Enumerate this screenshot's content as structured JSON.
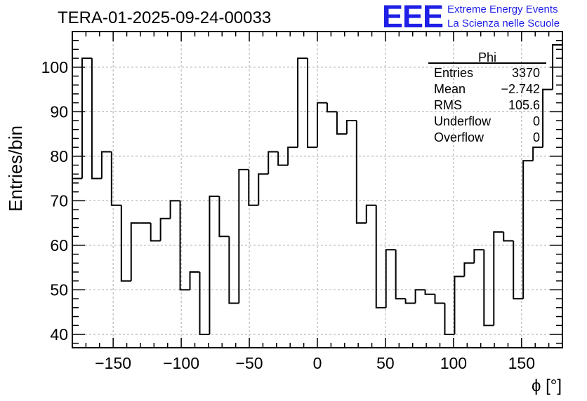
{
  "title": "TERA-01-2025-09-24-00033",
  "logo": {
    "mark": "EEE",
    "line1": "Extreme Energy Events",
    "line2": "La Scienza nelle Scuole",
    "color": "#1f1fe6"
  },
  "stats": {
    "name": "Phi",
    "rows": [
      {
        "label": "Entries",
        "value": "3370"
      },
      {
        "label": "Mean",
        "value": "−2.742"
      },
      {
        "label": "RMS",
        "value": "105.6"
      },
      {
        "label": "Underflow",
        "value": "0"
      },
      {
        "label": "Overflow",
        "value": "0"
      }
    ]
  },
  "chart_data": {
    "type": "histogram",
    "xlabel": "ϕ [°]",
    "ylabel": "Entries/bin",
    "xlim": [
      -180,
      180
    ],
    "ylim": [
      37,
      108
    ],
    "xticks": [
      -150,
      -100,
      -50,
      0,
      50,
      100,
      150
    ],
    "xtick_labels": [
      "−150",
      "−100",
      "−50",
      "0",
      "50",
      "100",
      "150"
    ],
    "yticks": [
      40,
      50,
      60,
      70,
      80,
      90,
      100
    ],
    "grid": true,
    "bin_width": 7.2,
    "values": [
      75,
      102,
      75,
      81,
      69,
      52,
      65,
      65,
      61,
      66,
      70,
      50,
      54,
      40,
      71,
      62,
      47,
      77,
      69,
      76,
      81,
      78,
      82,
      102,
      82,
      92,
      90,
      85,
      88,
      65,
      69,
      46,
      59,
      48,
      47,
      50,
      49,
      47,
      40,
      53,
      56,
      59,
      42,
      63,
      61,
      48,
      79,
      82,
      95,
      105
    ]
  }
}
